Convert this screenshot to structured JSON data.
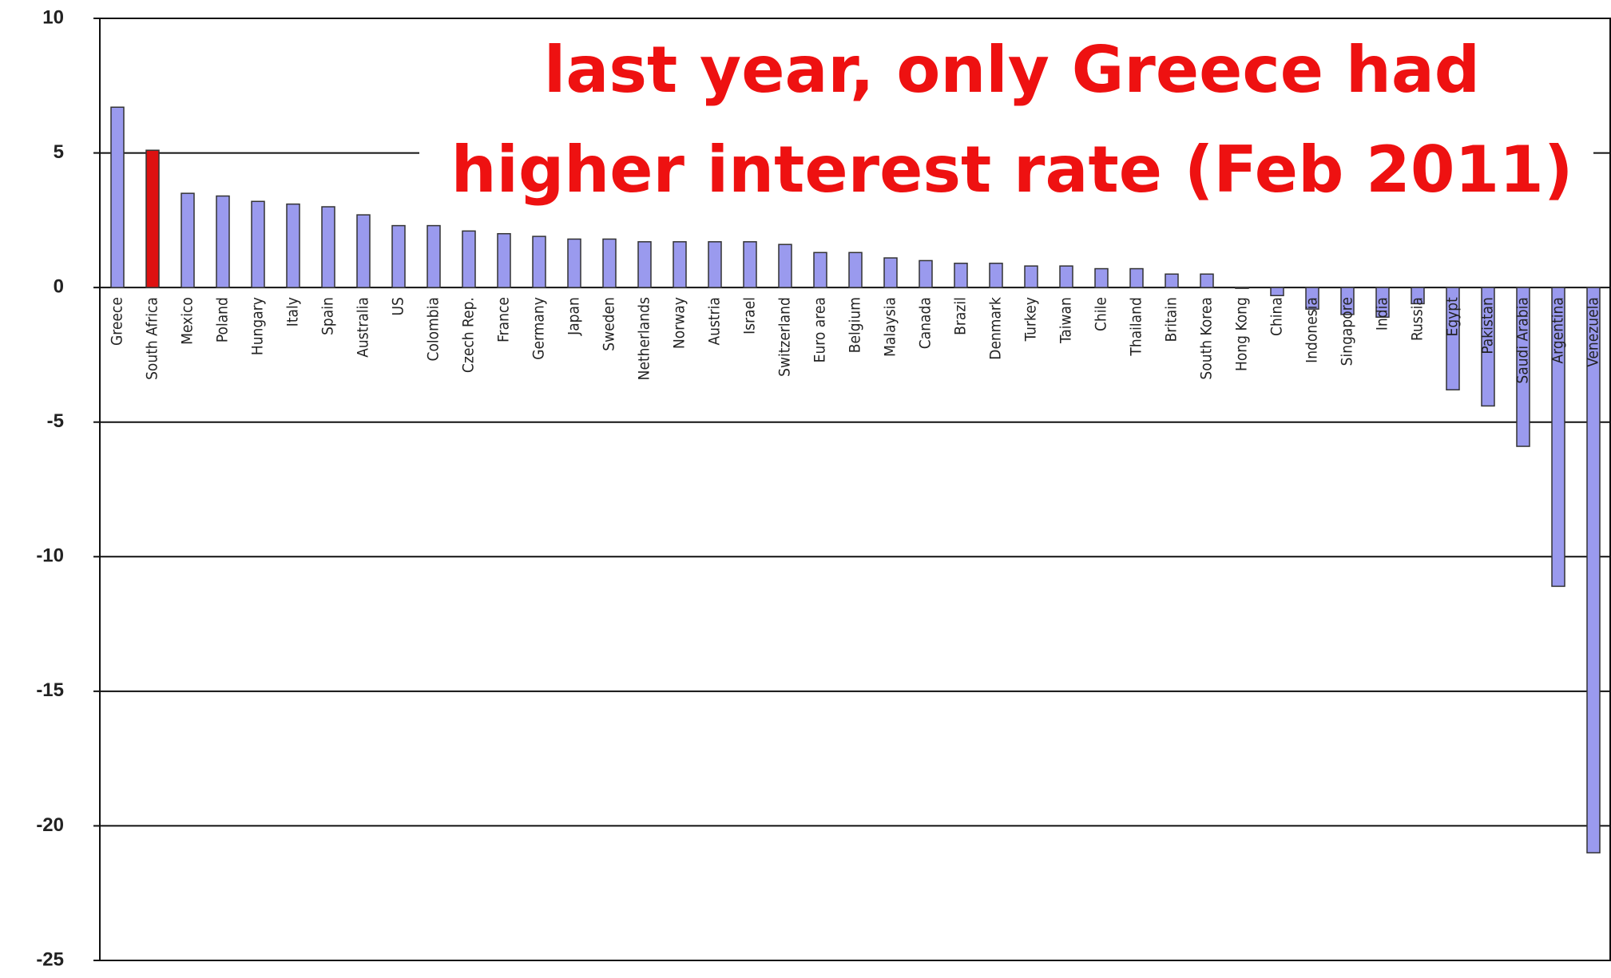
{
  "chart_data": {
    "type": "bar",
    "title_lines": [
      "last year, only Greece had",
      "higher interest rate (Feb 2011)"
    ],
    "categories": [
      "Greece",
      "South Africa",
      "Mexico",
      "Poland",
      "Hungary",
      "Italy",
      "Spain",
      "Australia",
      "US",
      "Colombia",
      "Czech Rep.",
      "France",
      "Germany",
      "Japan",
      "Sweden",
      "Netherlands",
      "Norway",
      "Austria",
      "Israel",
      "Switzerland",
      "Euro area",
      "Belgium",
      "Malaysia",
      "Canada",
      "Brazil",
      "Denmark",
      "Turkey",
      "Taiwan",
      "Chile",
      "Thailand",
      "Britain",
      "South Korea",
      "Hong Kong",
      "China",
      "Indonesia",
      "Singapore",
      "India",
      "Russia",
      "Egypt",
      "Pakistan",
      "Saudi Arabia",
      "Argentina",
      "Venezuela"
    ],
    "values": [
      6.7,
      5.1,
      3.5,
      3.4,
      3.2,
      3.1,
      3.0,
      2.7,
      2.3,
      2.3,
      2.1,
      2.0,
      1.9,
      1.8,
      1.8,
      1.7,
      1.7,
      1.7,
      1.7,
      1.6,
      1.3,
      1.3,
      1.1,
      1.0,
      0.9,
      0.9,
      0.8,
      0.8,
      0.7,
      0.7,
      0.5,
      0.5,
      0,
      -0.3,
      -0.8,
      -1.0,
      -1.1,
      -0.6,
      -3.8,
      -4.4,
      -5.9,
      -11.1,
      -21.0
    ],
    "colors": [
      "#9a9aee",
      "#dd1111",
      "#9a9aee",
      "#9a9aee",
      "#9a9aee",
      "#9a9aee",
      "#9a9aee",
      "#9a9aee",
      "#9a9aee",
      "#9a9aee",
      "#9a9aee",
      "#9a9aee",
      "#9a9aee",
      "#9a9aee",
      "#9a9aee",
      "#9a9aee",
      "#9a9aee",
      "#9a9aee",
      "#9a9aee",
      "#9a9aee",
      "#9a9aee",
      "#9a9aee",
      "#9a9aee",
      "#9a9aee",
      "#9a9aee",
      "#9a9aee",
      "#9a9aee",
      "#9a9aee",
      "#9a9aee",
      "#9a9aee",
      "#9a9aee",
      "#9a9aee",
      "#9a9aee",
      "#9a9aee",
      "#9a9aee",
      "#9a9aee",
      "#9a9aee",
      "#9a9aee",
      "#9a9aee",
      "#9a9aee",
      "#9a9aee",
      "#9a9aee",
      "#9a9aee"
    ],
    "ylim": [
      -25,
      10
    ],
    "yticks": [
      10,
      5,
      0,
      -5,
      -10,
      -15,
      -20,
      -25
    ],
    "grid": true
  }
}
